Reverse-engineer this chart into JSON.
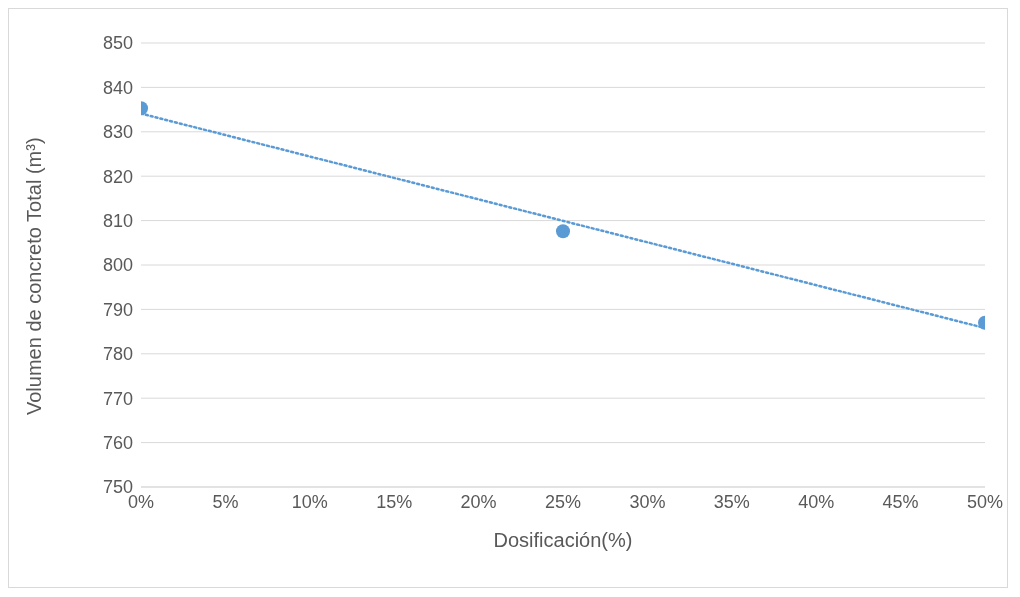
{
  "chart_data": {
    "type": "scatter",
    "xlabel": "Dosificación(%)",
    "ylabel": "Volumen de concreto Total (m³)",
    "x": [
      0,
      25,
      50
    ],
    "series": [
      {
        "color": "#5b9bd5",
        "values": [
          835.3,
          807.6,
          787.0
        ],
        "marker": "circle"
      },
      {
        "type": "line",
        "color": "#5b9bd5",
        "x": [
          0,
          50
        ],
        "values": [
          834.1,
          785.8
        ],
        "line_style": "dotted",
        "marker": "none"
      }
    ],
    "xlim": [
      0,
      50
    ],
    "xticks": [
      {
        "value": 0,
        "label": "0%"
      },
      {
        "value": 5,
        "label": "5%"
      },
      {
        "value": 10,
        "label": "10%"
      },
      {
        "value": 15,
        "label": "15%"
      },
      {
        "value": 20,
        "label": "20%"
      },
      {
        "value": 25,
        "label": "25%"
      },
      {
        "value": 30,
        "label": "30%"
      },
      {
        "value": 35,
        "label": "35%"
      },
      {
        "value": 40,
        "label": "40%"
      },
      {
        "value": 45,
        "label": "45%"
      },
      {
        "value": 50,
        "label": "50%"
      }
    ],
    "ylim": [
      750,
      850
    ],
    "yticks": [
      750,
      760,
      770,
      780,
      790,
      800,
      810,
      820,
      830,
      840,
      850
    ],
    "grid": "y"
  }
}
